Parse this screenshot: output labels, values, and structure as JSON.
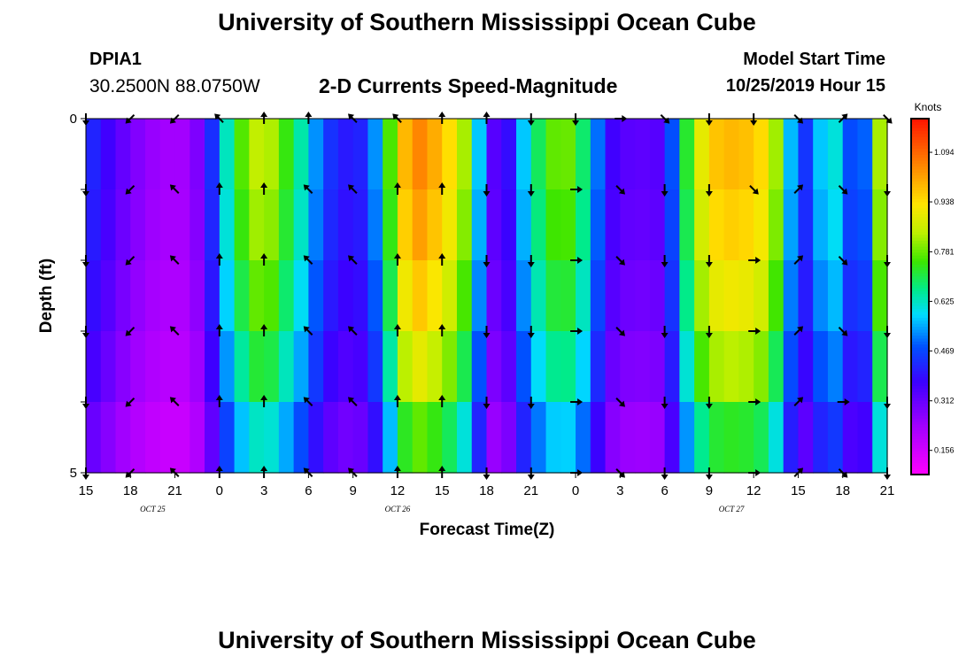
{
  "header": {
    "title": "University of Southern Mississippi Ocean Cube",
    "station_id": "DPIA1",
    "coords": "30.2500N 88.0750W",
    "subtitle": "2-D Currents Speed-Magnitude",
    "model_start_label": "Model Start Time",
    "model_start_value": "10/25/2019 Hour 15"
  },
  "footer": {
    "title": "University of Southern Mississippi Ocean Cube"
  },
  "chart_data": {
    "type": "heatmap",
    "title": "2-D Currents Speed-Magnitude",
    "xlabel": "Forecast Time(Z)",
    "ylabel": "Depth (ft)",
    "ylim": [
      0,
      5
    ],
    "y_ticks": [
      0,
      1,
      2,
      3,
      4,
      5
    ],
    "y_tick_labels": [
      "0",
      "",
      "",
      "",
      "",
      "5"
    ],
    "x_hours": [
      0,
      3,
      6,
      9,
      12,
      15,
      18,
      21,
      24,
      27,
      30,
      33,
      36,
      39,
      42,
      45,
      48,
      51,
      54
    ],
    "x_tick_labels": [
      "15",
      "18",
      "21",
      "0",
      "3",
      "6",
      "9",
      "12",
      "15",
      "18",
      "21",
      "0",
      "3",
      "6",
      "9",
      "12",
      "15",
      "18",
      "21"
    ],
    "date_labels": [
      {
        "hour": 4.5,
        "text": "OCT 25"
      },
      {
        "hour": 21,
        "text": "OCT 26"
      },
      {
        "hour": 43.5,
        "text": "OCT 27"
      }
    ],
    "colorbar": {
      "unit": "Knots",
      "min": 0.08,
      "max": 1.2,
      "ticks": [
        0.156,
        0.312,
        0.469,
        0.625,
        0.781,
        0.938,
        1.094
      ],
      "tick_labels": [
        "0.156",
        "0.312",
        "0.469",
        "0.625",
        "0.781",
        "0.938",
        "1.094"
      ]
    },
    "depth_rows": 5,
    "time_hours": [
      0,
      1,
      2,
      3,
      4,
      5,
      6,
      7,
      8,
      9,
      10,
      11,
      12,
      13,
      14,
      15,
      16,
      17,
      18,
      19,
      20,
      21,
      22,
      23,
      24,
      25,
      26,
      27,
      28,
      29,
      30,
      31,
      32,
      33,
      34,
      35,
      36,
      37,
      38,
      39,
      40,
      41,
      42,
      43,
      44,
      45,
      46,
      47,
      48,
      49,
      50,
      51,
      52,
      53,
      54
    ],
    "speed_profile": [
      0.45,
      0.4,
      0.34,
      0.3,
      0.26,
      0.24,
      0.23,
      0.24,
      0.33,
      0.55,
      0.72,
      0.83,
      0.88,
      0.8,
      0.7,
      0.6,
      0.47,
      0.42,
      0.4,
      0.45,
      0.62,
      0.92,
      1.08,
      1.05,
      0.98,
      0.92,
      0.75,
      0.4,
      0.28,
      0.5,
      0.65,
      0.75,
      0.82,
      0.76,
      0.62,
      0.4,
      0.34,
      0.33,
      0.33,
      0.35,
      0.62,
      0.84,
      0.97,
      1.0,
      1.0,
      0.98,
      0.93,
      0.73,
      0.4,
      0.5,
      0.65,
      0.58,
      0.38,
      0.62,
      1.05
    ],
    "depth_factor": [
      1.0,
      0.98,
      0.94,
      0.88,
      0.8,
      0.66
    ],
    "arrows": {
      "hours": [
        0,
        3,
        6,
        9,
        12,
        15,
        18,
        21,
        24,
        27,
        30,
        33,
        36,
        39,
        42,
        45,
        48,
        51,
        54
      ],
      "depths": [
        0,
        1,
        2,
        3,
        4,
        5
      ],
      "directions_deg": [
        [
          180,
          225,
          225,
          315,
          0,
          0,
          315,
          315,
          0,
          0,
          180,
          180,
          90,
          135,
          180,
          180,
          135,
          45,
          135
        ],
        [
          180,
          225,
          315,
          0,
          0,
          315,
          315,
          0,
          0,
          180,
          180,
          90,
          135,
          180,
          180,
          135,
          45,
          135,
          180
        ],
        [
          180,
          225,
          315,
          0,
          0,
          315,
          315,
          0,
          0,
          180,
          180,
          90,
          135,
          180,
          180,
          90,
          45,
          135,
          180
        ],
        [
          180,
          225,
          315,
          0,
          0,
          315,
          315,
          0,
          0,
          180,
          180,
          90,
          135,
          180,
          180,
          90,
          45,
          135,
          180
        ],
        [
          180,
          225,
          315,
          0,
          0,
          315,
          315,
          0,
          0,
          180,
          180,
          90,
          135,
          180,
          180,
          90,
          45,
          90,
          180
        ],
        [
          180,
          225,
          315,
          0,
          0,
          315,
          315,
          0,
          0,
          180,
          180,
          90,
          135,
          180,
          180,
          90,
          45,
          135,
          180
        ]
      ]
    }
  }
}
